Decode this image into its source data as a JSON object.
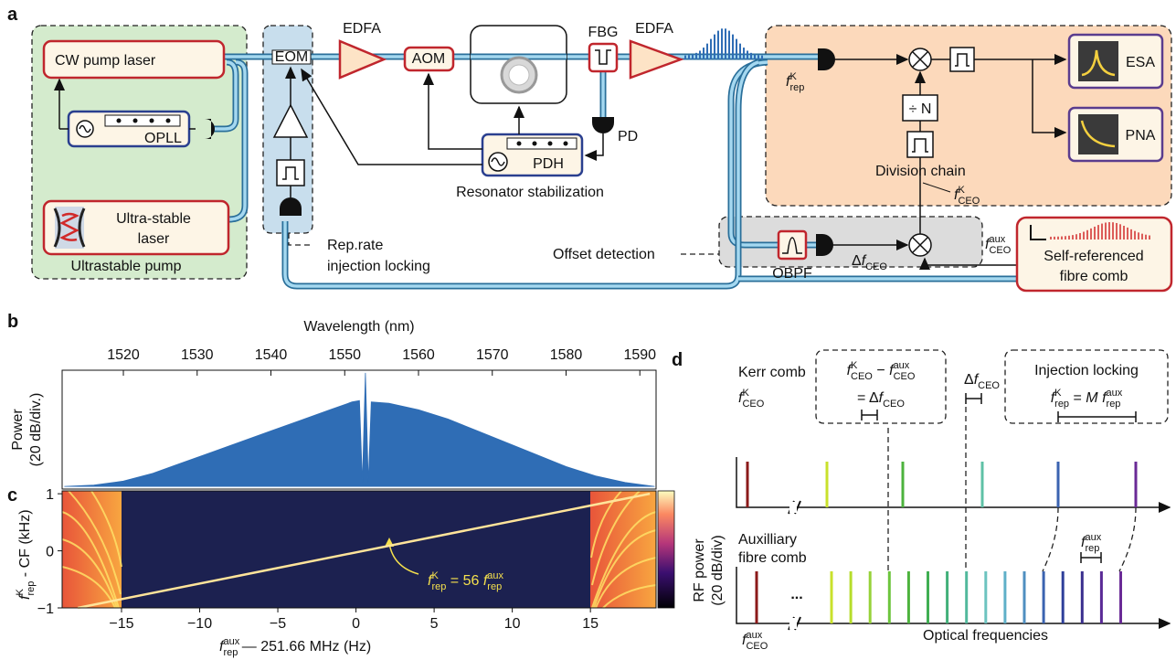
{
  "diagram": {
    "label": "a",
    "pump_box": "Ultrastable pump",
    "cw_laser": "CW pump laser",
    "opll": "OPLL",
    "ultra_stable_laser": [
      "Ultra-stable",
      "laser"
    ],
    "eom": "EOM",
    "rep_rate_locking": [
      "Rep.rate",
      "injection locking"
    ],
    "edfa_1": "EDFA",
    "aom": "AOM",
    "fbg": "FBG",
    "edfa_2": "EDFA",
    "pd": "PD",
    "pdh": "PDH",
    "resonator_stabilization": "Resonator stabilization",
    "division_chain": "Division chain",
    "f_rep_k": [
      {
        "base": "f",
        "sup": "K",
        "sub": "rep"
      }
    ],
    "divide": "÷ N",
    "esa": "ESA",
    "pna": "PNA",
    "f_ceo_k": [
      {
        "base": "f",
        "sup": "K",
        "sub": "CEO"
      }
    ],
    "obpf": "OBPF",
    "delta_f_ceo": [
      "Δ",
      {
        "base": "f",
        "sub": "CEO"
      }
    ],
    "f_ceo_aux": [
      {
        "base": "f",
        "sup": "aux",
        "sub": "CEO"
      }
    ],
    "offset_detection": "Offset detection",
    "fibre_comb": [
      "Self-referenced",
      "fibre comb"
    ]
  },
  "chart_data": [
    {
      "type": "area",
      "label": "b",
      "x_axis_title": "Wavelength (nm)",
      "y_axis_title": [
        "Power",
        "(20 dB/div.)"
      ],
      "x": [
        1512,
        1516,
        1520,
        1524,
        1528,
        1532,
        1536,
        1540,
        1544,
        1548,
        1551,
        1552,
        1552.4,
        1552.8,
        1553.2,
        1553.6,
        1556,
        1560,
        1564,
        1568,
        1572,
        1576,
        1580,
        1584,
        1588,
        1592
      ],
      "series": [
        {
          "color": "#2f6db5",
          "values": [
            -88,
            -87,
            -84,
            -78,
            -70,
            -62,
            -54,
            -46,
            -38,
            -30,
            -24,
            -23,
            -85,
            -2,
            -85,
            -24,
            -25,
            -30,
            -37,
            -46,
            -55,
            -64,
            -73,
            -80,
            -85,
            -88
          ]
        }
      ],
      "xlim": [
        1511.7,
        1592.2
      ],
      "xticks": [
        1520,
        1530,
        1540,
        1550,
        1560,
        1570,
        1580,
        1590
      ],
      "ylim": [
        -90,
        0
      ]
    },
    {
      "type": "spectrogram",
      "label": "c",
      "x_axis_title": [
        {
          "base": "f",
          "sup": "aux",
          "sub": "rep"
        },
        " — 251.66 MHz (Hz)"
      ],
      "y_axis_title": [
        {
          "base": "f",
          "sup": "K",
          "sub": "rep"
        },
        " - CF (kHz)"
      ],
      "x": [
        -17.8,
        18.8
      ],
      "series": [
        {
          "color": "#ffe49a",
          "values": [
            -1,
            1
          ]
        }
      ],
      "xlim": [
        -18.8,
        19.2
      ],
      "xticks": [
        {
          "value": -15,
          "label": "−15"
        },
        {
          "value": -10,
          "label": "−10"
        },
        {
          "value": -5,
          "label": "−5"
        },
        0,
        5,
        10,
        15
      ],
      "ylim": [
        -1,
        1.05
      ],
      "yticks": [
        {
          "value": -1,
          "label": "−1"
        },
        0,
        1
      ],
      "annotation": [
        {
          "base": "f",
          "sup": "K",
          "sub": "rep"
        },
        " = 56 ",
        {
          "base": "f",
          "sup": "aux",
          "sub": "rep"
        }
      ]
    }
  ],
  "schematic": {
    "label": "d",
    "kerr_comb": "Kerr comb",
    "f_ceo_k": [
      {
        "base": "f",
        "sup": "K",
        "sub": "CEO"
      }
    ],
    "difference": [
      [
        {
          "base": "f",
          "sup": "K",
          "sub": "CEO"
        },
        " − ",
        {
          "base": "f",
          "sup": "aux",
          "sub": "CEO"
        }
      ],
      [
        "= Δ",
        {
          "base": "f",
          "sub": "CEO"
        }
      ]
    ],
    "delta_f_ceo": [
      "Δ",
      {
        "base": "f",
        "sub": "CEO"
      }
    ],
    "injection_locking": "Injection locking",
    "locking_relation": [
      {
        "base": "f",
        "sup": "K",
        "sub": "rep"
      },
      " = ",
      {
        "base": "M"
      },
      " ",
      {
        "base": "f",
        "sup": "aux",
        "sub": "rep"
      }
    ],
    "aux_comb": [
      "Auxilliary",
      "fibre comb"
    ],
    "ellipsis": "...",
    "f_rep_aux": [
      {
        "base": "f",
        "sup": "aux",
        "sub": "rep"
      }
    ],
    "f_ceo_aux": [
      {
        "base": "f",
        "sup": "aux",
        "sub": "CEO"
      }
    ],
    "y_axis_title": [
      "RF power",
      "(20 dB/div)"
    ],
    "x_axis_title": "Optical frequencies"
  }
}
